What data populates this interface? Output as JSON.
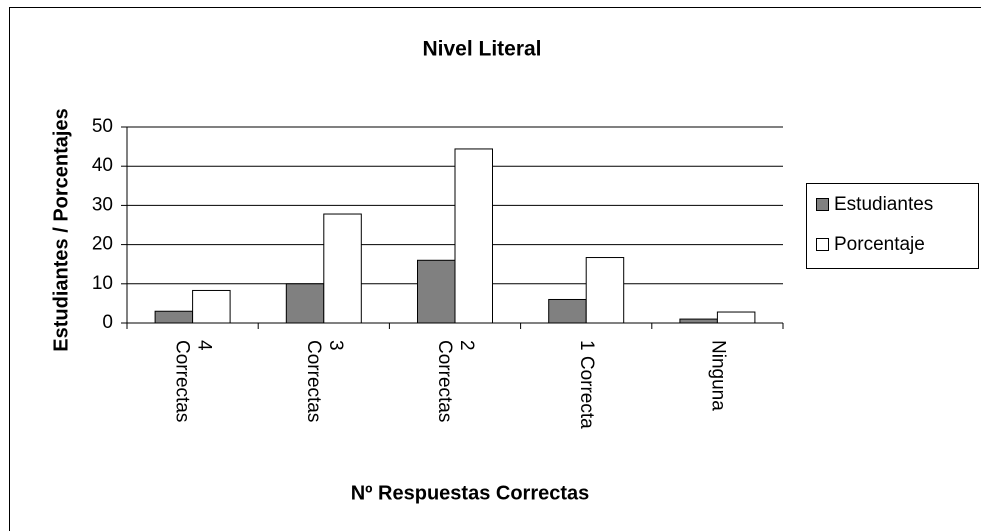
{
  "chart_data": {
    "type": "bar",
    "title": "Nivel Literal",
    "x_label": "Nº Respuestas Correctas",
    "y_label": "Estudiantes / Porcentajes",
    "categories": [
      "4 Correctas",
      "3 Correctas",
      "2 Correctas",
      "1 Correcta",
      "Ninguna"
    ],
    "series": [
      {
        "name": "Estudiantes",
        "color": "#808080",
        "values": [
          3,
          10,
          16,
          6,
          1
        ]
      },
      {
        "name": "Porcentaje",
        "color": "#ffffff",
        "values": [
          8.3,
          27.8,
          44.4,
          16.7,
          2.8
        ]
      }
    ],
    "ylim": [
      0,
      50
    ],
    "yticks": [
      0,
      10,
      20,
      30,
      40,
      50
    ],
    "grid": true,
    "legend": "right"
  }
}
